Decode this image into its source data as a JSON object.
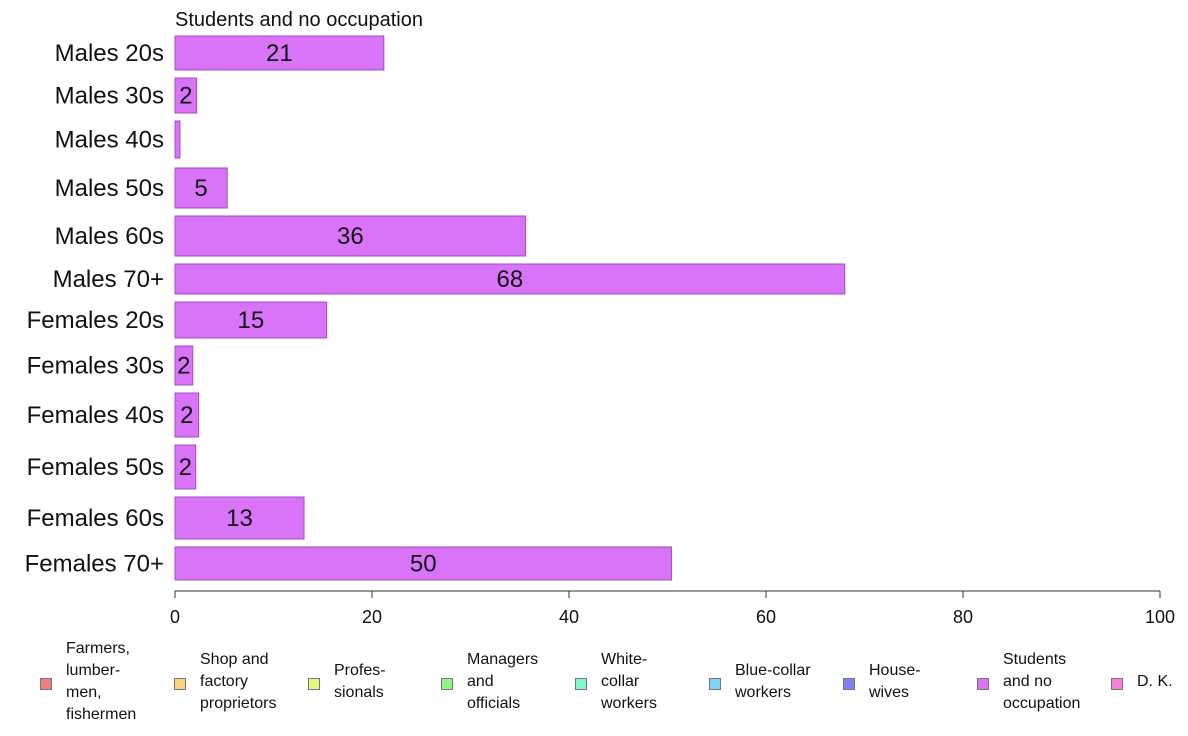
{
  "chart_data": {
    "type": "bar",
    "orientation": "horizontal",
    "title": "Students and no occupation",
    "categories": [
      "Males 20s",
      "Males 30s",
      "Males 40s",
      "Males 50s",
      "Males 60s",
      "Males 70+",
      "Females 20s",
      "Females 30s",
      "Females 40s",
      "Females 50s",
      "Females 60s",
      "Females 70+"
    ],
    "values": [
      21.2,
      2.2,
      0.5,
      5.3,
      35.6,
      68.0,
      15.4,
      1.8,
      2.4,
      2.1,
      13.1,
      50.4
    ],
    "data_labels": [
      "21",
      "2",
      "",
      "5",
      "36",
      "68",
      "15",
      "2",
      "2",
      "2",
      "13",
      "50"
    ],
    "xlim": [
      0,
      100
    ],
    "xticks": [
      "0",
      "20",
      "40",
      "60",
      "80",
      "100"
    ],
    "bar_color": "#d973f7",
    "bar_edge": "#a24cc4",
    "legend": {
      "placement": "bottom",
      "items": [
        {
          "label": "Farmers,\nlumber-\nmen,\nfishermen",
          "color": "#f27f7f"
        },
        {
          "label": "Shop and\nfactory\nproprietors",
          "color": "#f7d57f"
        },
        {
          "label": "Profes-\nsionals",
          "color": "#e2f77f"
        },
        {
          "label": "Managers\nand\nofficials",
          "color": "#8ef77f"
        },
        {
          "label": "White-\ncollar\nworkers",
          "color": "#7ff7d2"
        },
        {
          "label": "Blue-collar\nworkers",
          "color": "#7fd4f7"
        },
        {
          "label": "House-\nwives",
          "color": "#7f7ff7"
        },
        {
          "label": "Students\nand no\noccupation",
          "color": "#d973f7"
        },
        {
          "label": "D. K.",
          "color": "#f77fd6"
        }
      ]
    }
  }
}
